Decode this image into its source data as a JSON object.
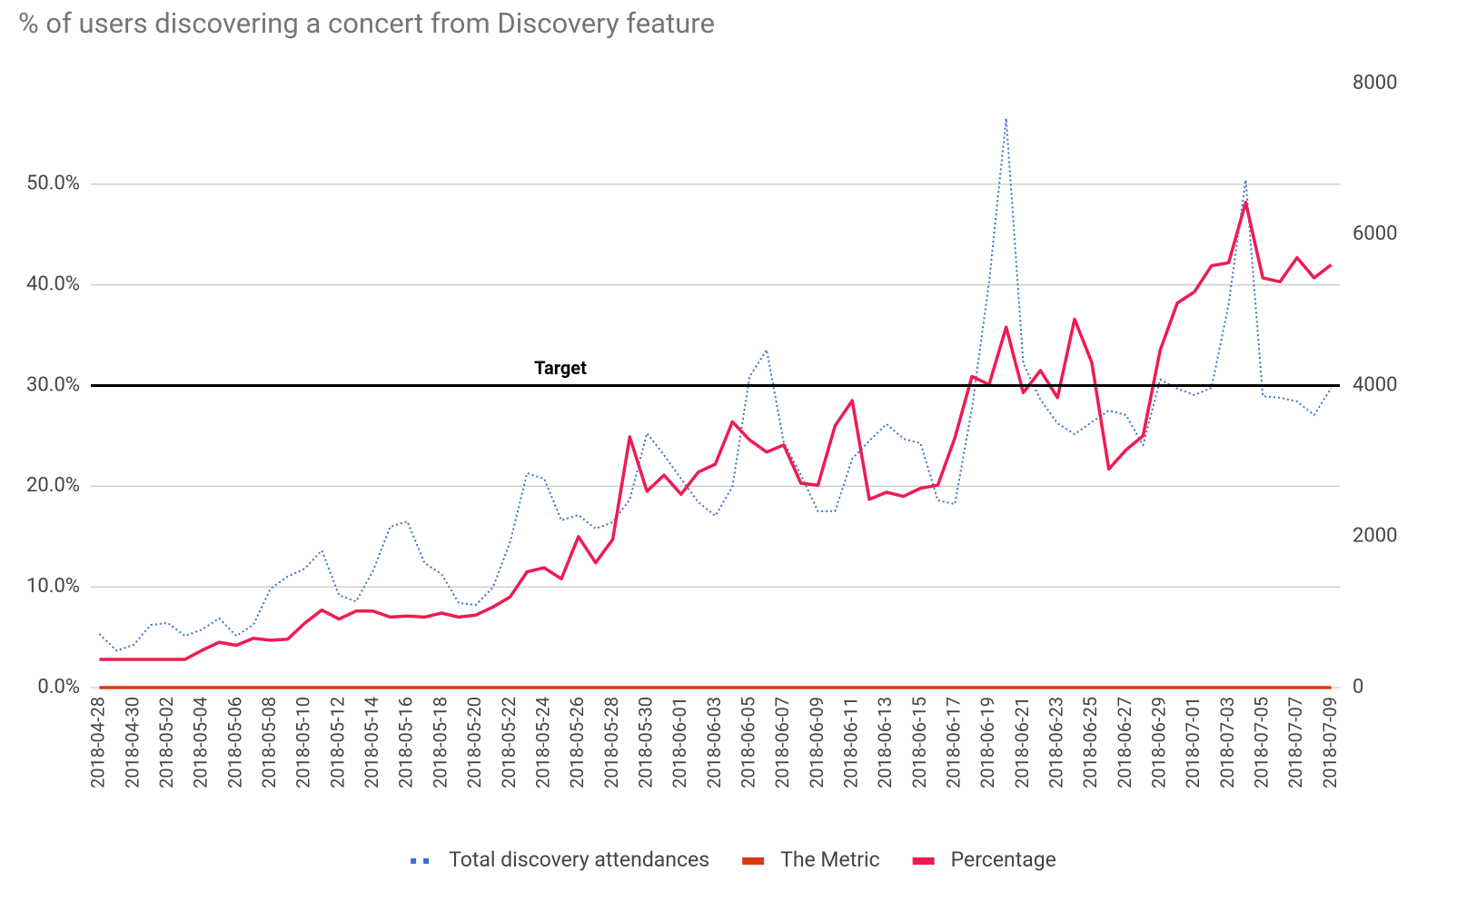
{
  "chart_data": {
    "type": "line",
    "title": "% of users discovering a concert from Discovery feature",
    "categories": [
      "2018-04-28",
      null,
      "2018-04-30",
      null,
      "2018-05-02",
      null,
      "2018-05-04",
      null,
      "2018-05-06",
      null,
      "2018-05-08",
      null,
      "2018-05-10",
      null,
      "2018-05-12",
      null,
      "2018-05-14",
      null,
      "2018-05-16",
      null,
      "2018-05-18",
      null,
      "2018-05-20",
      null,
      "2018-05-22",
      null,
      "2018-05-24",
      null,
      "2018-05-26",
      null,
      "2018-05-28",
      null,
      "2018-05-30",
      null,
      "2018-06-01",
      null,
      "2018-06-03",
      null,
      "2018-06-05",
      null,
      "2018-06-07",
      null,
      "2018-06-09",
      null,
      "2018-06-11",
      null,
      "2018-06-13",
      null,
      "2018-06-15",
      null,
      "2018-06-17",
      null,
      "2018-06-19",
      null,
      "2018-06-21",
      null,
      "2018-06-23",
      null,
      "2018-06-25",
      null,
      "2018-06-27",
      null,
      "2018-06-29",
      null,
      "2018-07-01",
      null,
      "2018-07-03",
      null,
      "2018-07-05",
      null,
      "2018-07-07",
      null,
      "2018-07-09"
    ],
    "series": [
      {
        "name": "Total discovery attendances",
        "color": "#3c6fd1",
        "style": "dotted",
        "axis": "y2",
        "values": [
          710,
          490,
          565,
          830,
          855,
          685,
          770,
          915,
          685,
          830,
          1310,
          1470,
          1575,
          1815,
          1225,
          1140,
          1550,
          2130,
          2200,
          1650,
          1505,
          1120,
          1095,
          1325,
          1925,
          2840,
          2765,
          2215,
          2285,
          2105,
          2190,
          2490,
          3370,
          3080,
          2765,
          2455,
          2275,
          2660,
          4115,
          4475,
          3250,
          2815,
          2335,
          2335,
          3030,
          3270,
          3490,
          3295,
          3235,
          2480,
          2430,
          3695,
          5375,
          7540,
          4295,
          3815,
          3500,
          3355,
          3515,
          3670,
          3610,
          3210,
          4080,
          3960,
          3875,
          3970,
          5075,
          6725,
          3860,
          3840,
          3790,
          3610,
          3970
        ]
      },
      {
        "name": "The Metric",
        "color": "#dc3912",
        "style": "solid",
        "values": [
          0,
          0,
          0,
          0,
          0,
          0,
          0,
          0,
          0,
          0,
          0,
          0,
          0,
          0,
          0,
          0,
          0,
          0,
          0,
          0,
          0,
          0,
          0,
          0,
          0,
          0,
          0,
          0,
          0,
          0,
          0,
          0,
          0,
          0,
          0,
          0,
          0,
          0,
          0,
          0,
          0,
          0,
          0,
          0,
          0,
          0,
          0,
          0,
          0,
          0,
          0,
          0,
          0,
          0,
          0,
          0,
          0,
          0,
          0,
          0,
          0,
          0,
          0,
          0,
          0,
          0,
          0,
          0,
          0,
          0,
          0,
          0,
          0
        ]
      },
      {
        "name": "Percentage",
        "color": "#ef1b52",
        "style": "solid",
        "values": [
          2.8,
          2.8,
          2.8,
          2.8,
          2.8,
          2.8,
          3.7,
          4.5,
          4.2,
          4.9,
          4.7,
          4.8,
          6.4,
          7.7,
          6.8,
          7.6,
          7.6,
          7.0,
          7.1,
          7.0,
          7.4,
          7.0,
          7.2,
          8.0,
          9.0,
          11.5,
          11.9,
          10.8,
          15.0,
          12.4,
          14.7,
          24.9,
          19.5,
          21.1,
          19.2,
          21.4,
          22.2,
          26.4,
          24.6,
          23.4,
          24.1,
          20.3,
          20.1,
          26.0,
          28.5,
          18.7,
          19.4,
          19.0,
          19.8,
          20.1,
          24.8,
          30.9,
          30.1,
          35.8,
          29.3,
          31.5,
          28.8,
          36.6,
          32.3,
          21.7,
          23.6,
          25.0,
          33.5,
          38.2,
          39.3,
          41.9,
          42.2,
          48.2,
          40.7,
          40.3,
          42.7,
          40.7,
          42.0
        ]
      }
    ],
    "ylim": [
      0,
      60
    ],
    "yticks": [
      {
        "value": 0,
        "label": "0.0%"
      },
      {
        "value": 10,
        "label": "10.0%"
      },
      {
        "value": 20,
        "label": "20.0%"
      },
      {
        "value": 30,
        "label": "30.0%"
      },
      {
        "value": 40,
        "label": "40.0%"
      },
      {
        "value": 50,
        "label": "50.0%"
      }
    ],
    "y2lim": [
      0,
      8000
    ],
    "y2ticks": [
      0,
      2000,
      4000,
      6000,
      8000
    ],
    "target": {
      "value": 30,
      "label": "Target"
    },
    "grid": true,
    "legend": "bottom"
  }
}
